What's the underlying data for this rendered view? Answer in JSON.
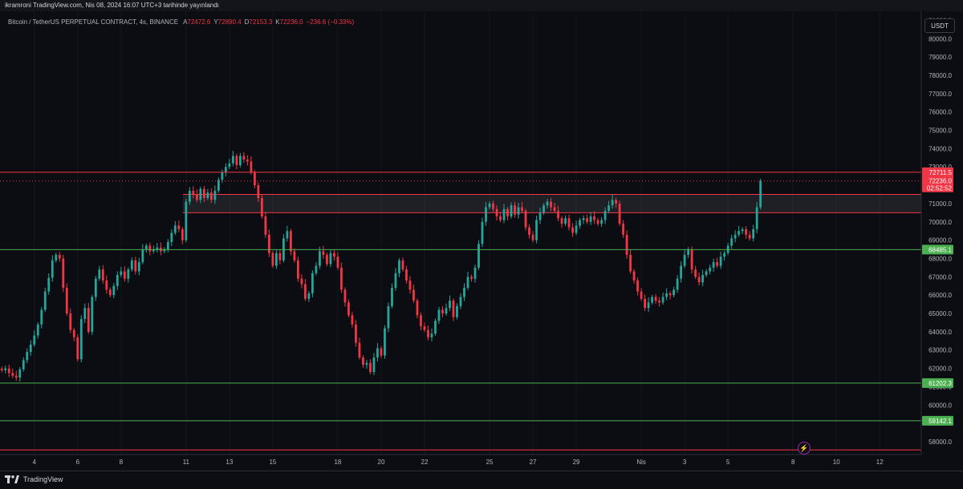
{
  "publisher": "ikramroni TradingView.com, Nis 08, 2024 16:07 UTC+3 tarihinde yayınlandı",
  "legend": {
    "symbol": "Bitcoin / TetherUS PERPETUAL CONTRACT, 4s, BINANCE",
    "o_key": "A",
    "o": "72472.6",
    "h_key": "Y",
    "h": "72890.4",
    "l_key": "D",
    "l": "72153.3",
    "c_key": "K",
    "c": "72236.0",
    "change": "−236.6 (−0.33%)"
  },
  "currency": "USDT",
  "brand": "TradingView",
  "colors": {
    "up": "#26a69a",
    "down": "#f23645",
    "resistance": "#f23645",
    "support": "#4caf50",
    "zone": "#787b86"
  },
  "chart_data": {
    "type": "candlestick",
    "symbol": "Bitcoin / TetherUS PERPETUAL CONTRACT",
    "interval": "4s",
    "exchange": "BINANCE",
    "ylim": [
      57300,
      81500
    ],
    "y_ticks": [
      "58000.0",
      "59000.0",
      "60000.0",
      "61000.0",
      "62000.0",
      "63000.0",
      "64000.0",
      "65000.0",
      "66000.0",
      "67000.0",
      "68000.0",
      "69000.0",
      "70000.0",
      "71000.0",
      "72000.0",
      "73000.0",
      "74000.0",
      "75000.0",
      "76000.0",
      "77000.0",
      "78000.0",
      "79000.0",
      "80000.0",
      "81000.0"
    ],
    "x_ticks": [
      {
        "label": "4",
        "i": 9
      },
      {
        "label": "6",
        "i": 21
      },
      {
        "label": "8",
        "i": 33
      },
      {
        "label": "11",
        "i": 51
      },
      {
        "label": "13",
        "i": 63
      },
      {
        "label": "15",
        "i": 75
      },
      {
        "label": "18",
        "i": 93
      },
      {
        "label": "20",
        "i": 105
      },
      {
        "label": "22",
        "i": 117
      },
      {
        "label": "25",
        "i": 135
      },
      {
        "label": "27",
        "i": 147
      },
      {
        "label": "29",
        "i": 159
      },
      {
        "label": "Nis",
        "i": 177
      },
      {
        "label": "3",
        "i": 189
      },
      {
        "label": "5",
        "i": 201
      },
      {
        "label": "8",
        "i": 219
      },
      {
        "label": "10",
        "i": 231
      },
      {
        "label": "12",
        "i": 243
      }
    ],
    "x_span": [
      -0.5,
      254.5
    ],
    "horizontal_lines": [
      {
        "price": 72711.5,
        "label": "72711.5",
        "kind": "resistance"
      },
      {
        "price": 68485.1,
        "label": "68485.1",
        "kind": "support"
      },
      {
        "price": 61202.3,
        "label": "61202.3",
        "kind": "support"
      },
      {
        "price": 59142.1,
        "label": "59142.1",
        "kind": "support"
      },
      {
        "price": 57550,
        "label": "",
        "kind": "resistance"
      }
    ],
    "zone": {
      "low": 70500,
      "high": 71500
    },
    "last_price": {
      "value": "72236.0",
      "countdown": "02:52:52",
      "price": 72236
    },
    "closes": [
      61900,
      62000,
      61750,
      61600,
      61500,
      61950,
      62450,
      62900,
      63300,
      63800,
      64400,
      65200,
      66200,
      66950,
      67900,
      68200,
      68000,
      66400,
      65000,
      64100,
      63700,
      62500,
      64700,
      65300,
      64000,
      65900,
      66900,
      67400,
      66800,
      66300,
      66000,
      66500,
      67100,
      67300,
      66900,
      67400,
      67900,
      67300,
      67800,
      68500,
      68700,
      68400,
      68500,
      68600,
      68400,
      68500,
      68900,
      69400,
      69800,
      69600,
      69000,
      71100,
      71700,
      71500,
      71200,
      71800,
      71300,
      71600,
      71200,
      71700,
      72300,
      72700,
      73000,
      73200,
      73600,
      73100,
      73600,
      73400,
      73300,
      72700,
      72000,
      71300,
      70300,
      69300,
      68300,
      67600,
      68300,
      67900,
      69100,
      69500,
      68400,
      67900,
      66900,
      66600,
      65800,
      66100,
      67200,
      67600,
      68400,
      68200,
      67700,
      68300,
      68100,
      67500,
      66300,
      65600,
      64900,
      64400,
      63400,
      62600,
      62200,
      62300,
      61800,
      62600,
      63100,
      62700,
      64200,
      65400,
      66400,
      67200,
      67900,
      67400,
      66800,
      66300,
      65700,
      64900,
      64300,
      64100,
      63700,
      63900,
      64600,
      65200,
      65000,
      65300,
      65700,
      64800,
      65400,
      65900,
      66400,
      67000,
      66900,
      67500,
      68800,
      70000,
      70800,
      71000,
      70700,
      70300,
      70100,
      70700,
      70300,
      70900,
      70400,
      70800,
      70600,
      69700,
      69300,
      69000,
      70100,
      70500,
      70900,
      71100,
      70800,
      70600,
      70200,
      69900,
      70200,
      69700,
      69400,
      69800,
      70100,
      70200,
      70000,
      70300,
      70100,
      69900,
      70100,
      70600,
      70900,
      71200,
      71000,
      69900,
      69300,
      68200,
      67300,
      66800,
      66200,
      65800,
      65300,
      65600,
      65900,
      65700,
      65600,
      65900,
      66100,
      66000,
      66300,
      66900,
      67600,
      68200,
      68500,
      67400,
      67000,
      66700,
      67100,
      67300,
      67500,
      67800,
      67600,
      68100,
      68300,
      68700,
      69100,
      69300,
      69500,
      69600,
      69300,
      69100,
      69600,
      70800,
      72236
    ]
  }
}
